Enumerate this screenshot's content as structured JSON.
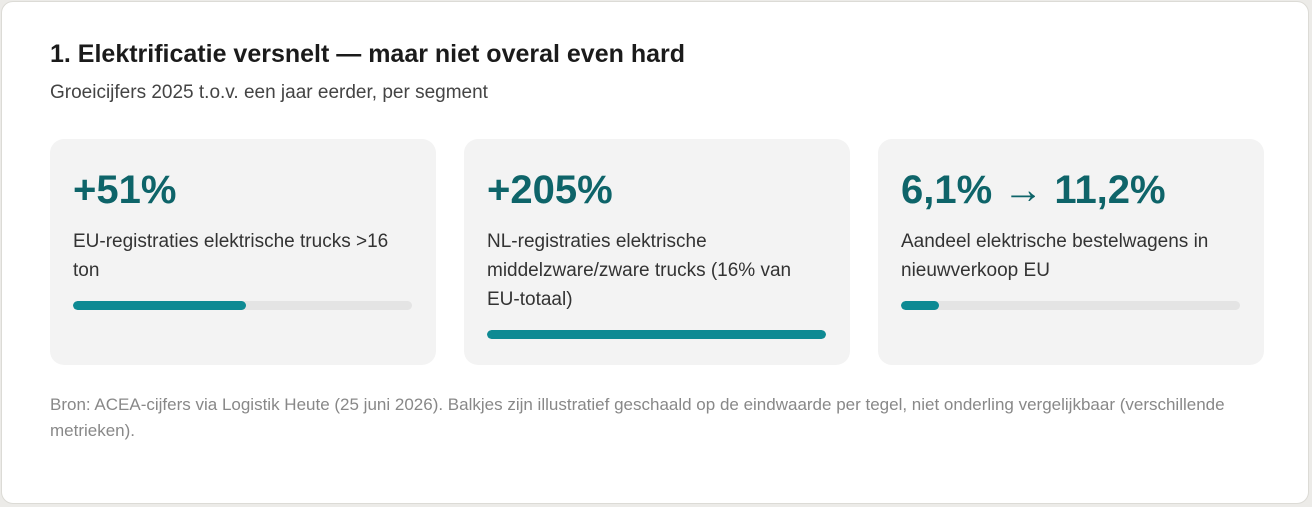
{
  "header": {
    "title": "1. Elektrificatie versnelt — maar niet overal even hard",
    "subtitle": "Groeicijfers 2025 t.o.v. een jaar eerder, per segment"
  },
  "tiles": [
    {
      "value": "+51%",
      "label": "EU-registraties elektrische trucks >16 ton",
      "bar": 51
    },
    {
      "value": "+205%",
      "label": "NL-registraties elektrische middelzware/zware trucks (16% van EU-totaal)",
      "bar": 100
    },
    {
      "value": "6,1% → 11,2%",
      "label": "Aandeel elektrische bestelwagens in nieuwverkoop EU",
      "bar": 11.2
    }
  ],
  "footnote": "Bron: ACEA-cijfers via Logistik Heute (25 juni 2026). Balkjes zijn illustratief geschaald op de eindwaarde per tegel, niet onderling vergelijkbaar (verschillende metrieken)."
}
